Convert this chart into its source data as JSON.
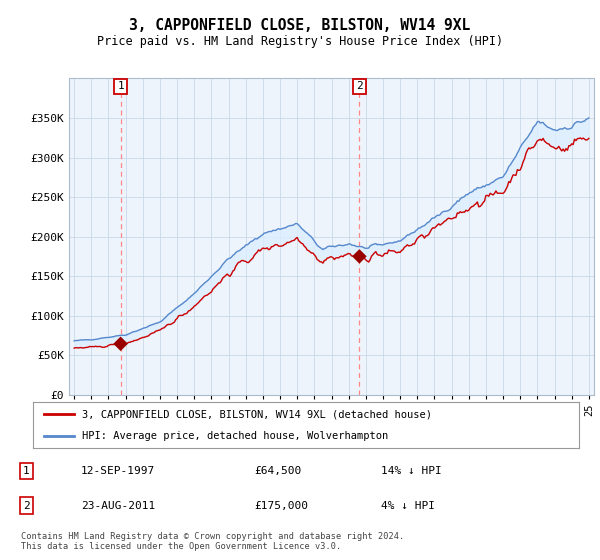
{
  "title": "3, CAPPONFIELD CLOSE, BILSTON, WV14 9XL",
  "subtitle": "Price paid vs. HM Land Registry's House Price Index (HPI)",
  "legend_line1": "3, CAPPONFIELD CLOSE, BILSTON, WV14 9XL (detached house)",
  "legend_line2": "HPI: Average price, detached house, Wolverhampton",
  "transaction1_date": "12-SEP-1997",
  "transaction1_price": 64500,
  "transaction1_pct": "14% ↓ HPI",
  "transaction2_date": "23-AUG-2011",
  "transaction2_price": 175000,
  "transaction2_pct": "4% ↓ HPI",
  "copyright": "Contains HM Land Registry data © Crown copyright and database right 2024.\nThis data is licensed under the Open Government Licence v3.0.",
  "ylim": [
    0,
    400000
  ],
  "yticks": [
    0,
    50000,
    100000,
    150000,
    200000,
    250000,
    300000,
    350000
  ],
  "ytick_labels": [
    "£0",
    "£50K",
    "£100K",
    "£150K",
    "£200K",
    "£250K",
    "£300K",
    "£350K"
  ],
  "hpi_color": "#5588cc",
  "price_color": "#cc0000",
  "fill_color": "#ddeeff",
  "marker_color": "#990000",
  "vline_color": "#ff8888",
  "background_color": "#ffffff",
  "plot_bg_color": "#eef4fb",
  "grid_color": "#c8d8e8"
}
